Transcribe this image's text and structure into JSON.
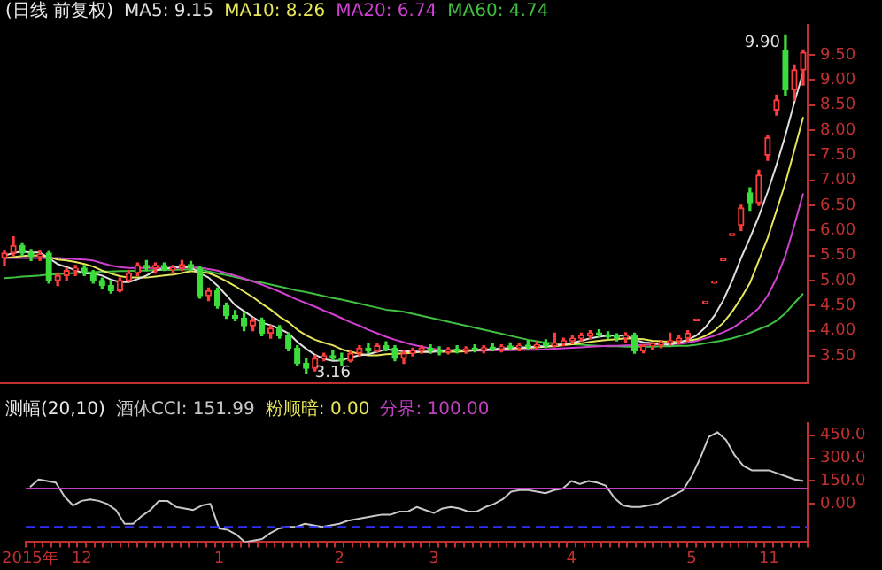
{
  "chart_data": [
    {
      "type": "candlestick",
      "title": "(日线 前复权)",
      "grid": false,
      "marker": "none",
      "tick_labels": "y",
      "categories": [
        null,
        null,
        null,
        null,
        null,
        null,
        null,
        null,
        null,
        null,
        null,
        null,
        null,
        null,
        null,
        null,
        null,
        null,
        null,
        null,
        null,
        null,
        null,
        null,
        null,
        null,
        null,
        null,
        null,
        null,
        null,
        null,
        null,
        null,
        null,
        null,
        null,
        null,
        null,
        null,
        null,
        null,
        null,
        null,
        null,
        null,
        null,
        null,
        null,
        null,
        null,
        null,
        null,
        null,
        null,
        null,
        null,
        null,
        null,
        null,
        null,
        null,
        null,
        null,
        null,
        null,
        null,
        null,
        null,
        null,
        null,
        null,
        null,
        null,
        null,
        null,
        null,
        null,
        null,
        null,
        null,
        null,
        null,
        null,
        null,
        null,
        null,
        null,
        null,
        null,
        null
      ],
      "ohlc": [
        [
          5.45,
          5.6,
          5.3,
          5.55
        ],
        [
          5.55,
          5.87,
          5.5,
          5.7
        ],
        [
          5.7,
          5.75,
          5.5,
          5.55
        ],
        [
          5.55,
          5.62,
          5.4,
          5.48
        ],
        [
          5.48,
          5.6,
          5.4,
          5.52
        ],
        [
          5.55,
          5.58,
          4.95,
          5.0
        ],
        [
          5.0,
          5.15,
          4.9,
          5.1
        ],
        [
          5.1,
          5.25,
          5.0,
          5.2
        ],
        [
          5.2,
          5.3,
          5.1,
          5.25
        ],
        [
          5.25,
          5.3,
          5.1,
          5.15
        ],
        [
          5.15,
          5.2,
          4.95,
          5.0
        ],
        [
          5.0,
          5.05,
          4.85,
          4.9
        ],
        [
          4.9,
          5.0,
          4.75,
          4.8
        ],
        [
          4.8,
          5.05,
          4.78,
          5.0
        ],
        [
          5.0,
          5.2,
          4.98,
          5.15
        ],
        [
          5.15,
          5.35,
          5.1,
          5.3
        ],
        [
          5.3,
          5.4,
          5.2,
          5.25
        ],
        [
          5.25,
          5.35,
          5.15,
          5.3
        ],
        [
          5.3,
          5.35,
          5.2,
          5.22
        ],
        [
          5.22,
          5.3,
          5.15,
          5.25
        ],
        [
          5.25,
          5.4,
          5.2,
          5.32
        ],
        [
          5.32,
          5.38,
          5.2,
          5.25
        ],
        [
          5.25,
          5.28,
          4.65,
          4.7
        ],
        [
          4.7,
          4.85,
          4.6,
          4.8
        ],
        [
          4.8,
          4.85,
          4.45,
          4.5
        ],
        [
          4.5,
          4.55,
          4.25,
          4.3
        ],
        [
          4.3,
          4.4,
          4.2,
          4.25
        ],
        [
          4.25,
          4.35,
          4.0,
          4.1
        ],
        [
          4.1,
          4.25,
          4.0,
          4.2
        ],
        [
          4.2,
          4.25,
          3.9,
          3.95
        ],
        [
          3.95,
          4.1,
          3.85,
          4.05
        ],
        [
          4.05,
          4.1,
          3.85,
          3.9
        ],
        [
          3.9,
          3.95,
          3.6,
          3.65
        ],
        [
          3.65,
          3.7,
          3.3,
          3.35
        ],
        [
          3.35,
          3.45,
          3.16,
          3.25
        ],
        [
          3.25,
          3.5,
          3.2,
          3.45
        ],
        [
          3.45,
          3.55,
          3.4,
          3.5
        ],
        [
          3.5,
          3.6,
          3.42,
          3.45
        ],
        [
          3.45,
          3.55,
          3.3,
          3.4
        ],
        [
          3.4,
          3.6,
          3.38,
          3.55
        ],
        [
          3.55,
          3.7,
          3.5,
          3.65
        ],
        [
          3.65,
          3.75,
          3.55,
          3.6
        ],
        [
          3.6,
          3.75,
          3.58,
          3.7
        ],
        [
          3.7,
          3.78,
          3.6,
          3.65
        ],
        [
          3.65,
          3.7,
          3.4,
          3.45
        ],
        [
          3.45,
          3.6,
          3.35,
          3.55
        ],
        [
          3.55,
          3.65,
          3.5,
          3.6
        ],
        [
          3.6,
          3.7,
          3.55,
          3.65
        ],
        [
          3.65,
          3.72,
          3.55,
          3.6
        ],
        [
          3.6,
          3.68,
          3.52,
          3.58
        ],
        [
          3.58,
          3.66,
          3.54,
          3.62
        ],
        [
          3.62,
          3.7,
          3.56,
          3.6
        ],
        [
          3.6,
          3.68,
          3.55,
          3.64
        ],
        [
          3.64,
          3.72,
          3.58,
          3.62
        ],
        [
          3.62,
          3.7,
          3.56,
          3.66
        ],
        [
          3.66,
          3.74,
          3.6,
          3.64
        ],
        [
          3.64,
          3.72,
          3.58,
          3.68
        ],
        [
          3.68,
          3.76,
          3.62,
          3.66
        ],
        [
          3.66,
          3.74,
          3.6,
          3.7
        ],
        [
          3.7,
          3.8,
          3.64,
          3.68
        ],
        [
          3.68,
          3.78,
          3.62,
          3.72
        ],
        [
          3.72,
          3.82,
          3.66,
          3.7
        ],
        [
          3.7,
          3.95,
          3.68,
          3.75
        ],
        [
          3.75,
          3.85,
          3.7,
          3.8
        ],
        [
          3.8,
          3.9,
          3.74,
          3.85
        ],
        [
          3.85,
          3.95,
          3.8,
          3.9
        ],
        [
          3.9,
          4.0,
          3.84,
          3.95
        ],
        [
          3.95,
          4.02,
          3.88,
          3.92
        ],
        [
          3.92,
          3.98,
          3.84,
          3.88
        ],
        [
          3.88,
          3.94,
          3.8,
          3.86
        ],
        [
          3.86,
          3.96,
          3.76,
          3.9
        ],
        [
          3.9,
          3.95,
          3.55,
          3.6
        ],
        [
          3.6,
          3.72,
          3.56,
          3.7
        ],
        [
          3.7,
          3.76,
          3.62,
          3.72
        ],
        [
          3.72,
          3.8,
          3.66,
          3.76
        ],
        [
          3.76,
          3.95,
          3.72,
          3.8
        ],
        [
          3.8,
          3.9,
          3.74,
          3.85
        ],
        [
          3.85,
          4.0,
          3.8,
          3.95
        ],
        [
          4.2,
          4.2,
          4.2,
          4.2
        ],
        [
          4.55,
          4.55,
          4.55,
          4.55
        ],
        [
          4.95,
          4.95,
          4.95,
          4.95
        ],
        [
          5.4,
          5.4,
          5.4,
          5.4
        ],
        [
          5.9,
          5.9,
          5.9,
          5.9
        ],
        [
          6.1,
          6.5,
          6.0,
          6.45
        ],
        [
          6.75,
          6.85,
          6.4,
          6.55
        ],
        [
          6.55,
          7.2,
          6.5,
          7.1
        ],
        [
          7.5,
          7.9,
          7.4,
          7.85
        ],
        [
          8.4,
          8.7,
          8.3,
          8.6
        ],
        [
          9.6,
          9.9,
          8.7,
          8.8
        ],
        [
          8.8,
          9.3,
          8.6,
          9.2
        ],
        [
          9.2,
          9.6,
          8.9,
          9.55
        ]
      ],
      "series": [
        {
          "name": "MA5: 9.15",
          "type": "line",
          "color": "#e0e0e0",
          "values": [
            5.5,
            5.55,
            5.58,
            5.56,
            5.56,
            5.45,
            5.33,
            5.27,
            5.21,
            5.14,
            5.14,
            5.1,
            5.02,
            4.97,
            4.97,
            5.03,
            5.1,
            5.2,
            5.24,
            5.26,
            5.27,
            5.27,
            5.15,
            5.06,
            4.9,
            4.71,
            4.51,
            4.39,
            4.27,
            4.16,
            4.11,
            4.04,
            3.95,
            3.78,
            3.64,
            3.52,
            3.44,
            3.4,
            3.41,
            3.47,
            3.51,
            3.53,
            3.58,
            3.63,
            3.61,
            3.59,
            3.59,
            3.58,
            3.57,
            3.6,
            3.61,
            3.61,
            3.61,
            3.61,
            3.63,
            3.63,
            3.65,
            3.65,
            3.67,
            3.67,
            3.69,
            3.69,
            3.71,
            3.73,
            3.76,
            3.8,
            3.85,
            3.88,
            3.9,
            3.9,
            3.9,
            3.82,
            3.77,
            3.75,
            3.73,
            3.72,
            3.77,
            3.82,
            3.91,
            4.07,
            4.3,
            4.61,
            5.0,
            5.45,
            5.85,
            6.28,
            6.77,
            7.31,
            7.9,
            8.55,
            9.15
          ]
        },
        {
          "name": "MA10: 8.26",
          "type": "line",
          "color": "#e6e65a",
          "values": [
            5.45,
            5.47,
            5.49,
            5.5,
            5.5,
            5.47,
            5.42,
            5.4,
            5.37,
            5.33,
            5.28,
            5.2,
            5.14,
            5.09,
            5.06,
            5.06,
            5.06,
            5.08,
            5.1,
            5.12,
            5.15,
            5.19,
            5.17,
            5.15,
            5.08,
            4.99,
            4.89,
            4.78,
            4.67,
            4.54,
            4.42,
            4.28,
            4.17,
            4.02,
            3.91,
            3.82,
            3.76,
            3.71,
            3.63,
            3.58,
            3.54,
            3.51,
            3.51,
            3.53,
            3.54,
            3.55,
            3.56,
            3.58,
            3.59,
            3.58,
            3.58,
            3.58,
            3.59,
            3.61,
            3.62,
            3.62,
            3.63,
            3.64,
            3.65,
            3.66,
            3.67,
            3.68,
            3.69,
            3.71,
            3.73,
            3.75,
            3.78,
            3.8,
            3.82,
            3.83,
            3.85,
            3.84,
            3.83,
            3.8,
            3.79,
            3.78,
            3.78,
            3.8,
            3.83,
            3.9,
            4.0,
            4.16,
            4.38,
            4.65,
            4.95,
            5.4,
            5.85,
            6.4,
            6.95,
            7.6,
            8.26
          ]
        },
        {
          "name": "MA20: 6.74",
          "type": "line",
          "color": "#d040d0",
          "values": [
            5.45,
            5.45,
            5.45,
            5.45,
            5.45,
            5.45,
            5.45,
            5.44,
            5.43,
            5.42,
            5.4,
            5.35,
            5.3,
            5.27,
            5.25,
            5.25,
            5.25,
            5.25,
            5.25,
            5.25,
            5.25,
            5.26,
            5.26,
            5.23,
            5.2,
            5.15,
            5.1,
            5.04,
            4.98,
            4.92,
            4.85,
            4.78,
            4.7,
            4.62,
            4.55,
            4.48,
            4.4,
            4.33,
            4.25,
            4.17,
            4.1,
            4.02,
            3.95,
            3.88,
            3.82,
            3.77,
            3.72,
            3.68,
            3.65,
            3.62,
            3.6,
            3.6,
            3.6,
            3.6,
            3.6,
            3.61,
            3.61,
            3.61,
            3.62,
            3.62,
            3.62,
            3.63,
            3.64,
            3.65,
            3.66,
            3.67,
            3.68,
            3.69,
            3.7,
            3.7,
            3.71,
            3.71,
            3.72,
            3.72,
            3.73,
            3.73,
            3.74,
            3.76,
            3.8,
            3.85,
            3.9,
            3.97,
            4.05,
            4.17,
            4.3,
            4.45,
            4.7,
            5.05,
            5.5,
            6.1,
            6.74
          ]
        },
        {
          "name": "MA60: 4.74",
          "type": "line",
          "color": "#40c040",
          "values": [
            5.05,
            5.06,
            5.08,
            5.09,
            5.1,
            5.12,
            5.13,
            5.14,
            5.15,
            5.16,
            5.17,
            5.18,
            5.18,
            5.19,
            5.19,
            5.2,
            5.2,
            5.21,
            5.21,
            5.21,
            5.22,
            5.22,
            5.22,
            5.18,
            5.14,
            5.11,
            5.07,
            5.03,
            4.99,
            4.96,
            4.92,
            4.88,
            4.84,
            4.8,
            4.77,
            4.73,
            4.69,
            4.65,
            4.62,
            4.58,
            4.54,
            4.5,
            4.46,
            4.42,
            4.4,
            4.38,
            4.34,
            4.3,
            4.26,
            4.22,
            4.18,
            4.14,
            4.1,
            4.06,
            4.02,
            3.98,
            3.94,
            3.9,
            3.86,
            3.82,
            3.79,
            3.76,
            3.75,
            3.74,
            3.73,
            3.72,
            3.71,
            3.7,
            3.69,
            3.69,
            3.68,
            3.68,
            3.68,
            3.68,
            3.69,
            3.69,
            3.7,
            3.7,
            3.72,
            3.75,
            3.78,
            3.81,
            3.85,
            3.9,
            3.96,
            4.03,
            4.1,
            4.2,
            4.35,
            4.55,
            4.74
          ]
        }
      ],
      "ylim": [
        2.95,
        10.1
      ],
      "yticks": [
        {
          "value": 3.5,
          "label": "3.50"
        },
        {
          "value": 4,
          "label": "4.00"
        },
        {
          "value": 4.5,
          "label": "4.50"
        },
        {
          "value": 5,
          "label": "5.00"
        },
        {
          "value": 5.5,
          "label": "5.50"
        },
        {
          "value": 6,
          "label": "6.00"
        },
        {
          "value": 6.5,
          "label": "6.50"
        },
        {
          "value": 7,
          "label": "7.00"
        },
        {
          "value": 7.5,
          "label": "7.50"
        },
        {
          "value": 8,
          "label": "8.00"
        },
        {
          "value": 8.5,
          "label": "8.50"
        },
        {
          "value": 9,
          "label": "9.00"
        },
        {
          "value": 9.5,
          "label": "9.50"
        }
      ],
      "annotations": [
        "9.90",
        "3.16"
      ]
    },
    {
      "type": "line",
      "title": "测幅(20,10)",
      "grid": false,
      "marker": "none",
      "categories": [
        "2015年",
        null,
        null,
        null,
        null,
        null,
        "12",
        null,
        null,
        null,
        null,
        null,
        null,
        null,
        null,
        null,
        null,
        null,
        null,
        null,
        null,
        null,
        "1",
        null,
        null,
        null,
        null,
        null,
        null,
        null,
        null,
        null,
        null,
        null,
        null,
        null,
        "2",
        null,
        null,
        null,
        null,
        null,
        null,
        null,
        null,
        null,
        null,
        "3",
        null,
        null,
        null,
        null,
        null,
        null,
        null,
        null,
        null,
        null,
        null,
        null,
        null,
        null,
        null,
        "4",
        null,
        null,
        null,
        null,
        null,
        null,
        null,
        null,
        null,
        null,
        null,
        null,
        null,
        "5",
        null,
        null,
        null,
        null,
        null,
        null,
        null,
        null,
        "11",
        null,
        null,
        null,
        null
      ],
      "series": [
        {
          "name": "酒体CCI: 151.99",
          "color": "#c8c8c8",
          "values": [
            110,
            160,
            150,
            140,
            50,
            -10,
            20,
            30,
            20,
            0,
            -40,
            -130,
            -130,
            -80,
            -40,
            20,
            20,
            -20,
            -30,
            -40,
            -10,
            0,
            -160,
            -170,
            -200,
            -250,
            -240,
            -230,
            -190,
            -160,
            -150,
            -150,
            -130,
            -140,
            -150,
            -140,
            -130,
            -110,
            -100,
            -90,
            -80,
            -70,
            -70,
            -50,
            -50,
            -20,
            -40,
            -60,
            -30,
            -20,
            -30,
            -50,
            -50,
            -20,
            0,
            30,
            80,
            90,
            90,
            80,
            70,
            90,
            100,
            150,
            130,
            150,
            140,
            120,
            40,
            -10,
            -20,
            -20,
            -10,
            0,
            30,
            60,
            90,
            180,
            300,
            440,
            470,
            420,
            320,
            250,
            220,
            220,
            220,
            200,
            180,
            160,
            150
          ]
        }
      ],
      "ylim": [
        -250,
        530
      ],
      "yticks": [
        {
          "value": 0,
          "label": "0.00"
        },
        {
          "value": 150,
          "label": "150.0"
        },
        {
          "value": 300,
          "label": "300.0"
        },
        {
          "value": 450,
          "label": "450.0"
        }
      ],
      "ref_lines": [
        {
          "axis": "y",
          "value": 100,
          "label": "分界: 100.00",
          "color": "#c040c0"
        },
        {
          "axis": "y",
          "value": -150,
          "color": "#3030ff",
          "line_style": "dashed"
        }
      ],
      "annotations": [
        "粉顺暗: 0.00"
      ]
    }
  ]
}
